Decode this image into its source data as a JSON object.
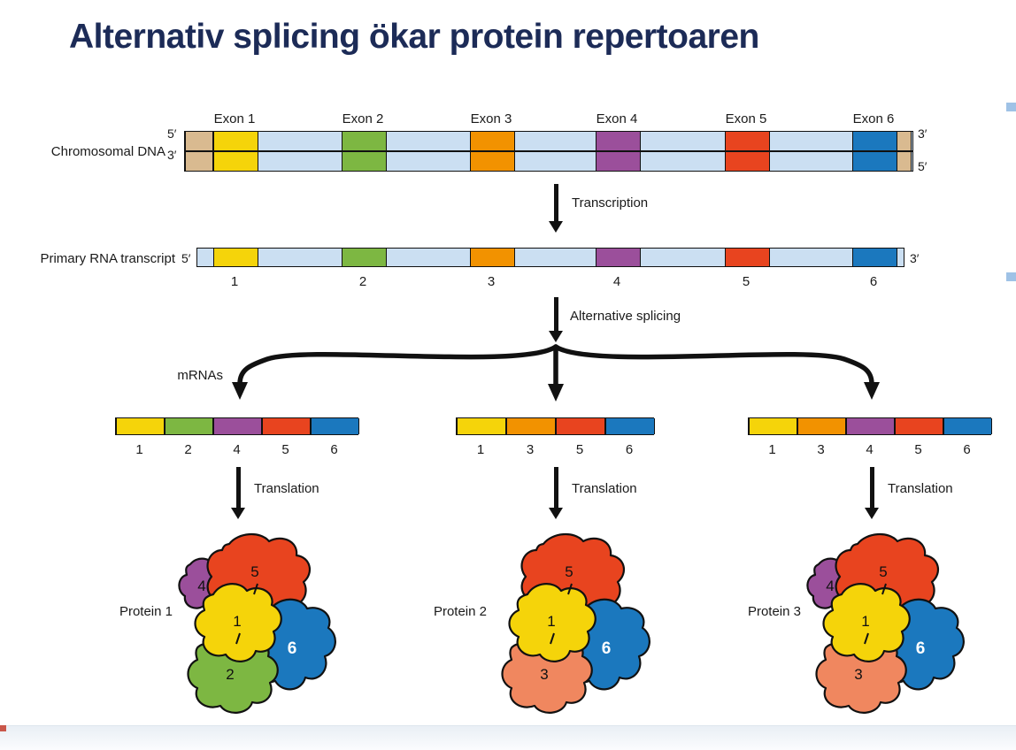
{
  "title": "Alternativ splicing ökar protein repertoaren",
  "palette": {
    "title_color": "#1c2b57",
    "intron": "#cbdff2",
    "endcap": "#d9ba90",
    "outline": "#111111",
    "marker_blue": "#9fc2e6",
    "exon_colors": {
      "1": "#f5d40a",
      "2": "#7db742",
      "3": "#f29200",
      "4": "#9b4f9b",
      "5": "#e8441f",
      "6": "#1b78be"
    },
    "protein_subunit_colors": {
      "1": "#f5d40a",
      "2": "#7db742",
      "3": "#f0875f",
      "4": "#9b4f9b",
      "5": "#e8441f",
      "6": "#1b78be"
    }
  },
  "dna_row": {
    "label": "Chromosomal DNA",
    "left_top_prime": "5′",
    "left_bottom_prime": "3′",
    "right_top_prime": "3′",
    "right_bottom_prime": "5′",
    "exons": [
      {
        "num": "1",
        "label": "Exon 1"
      },
      {
        "num": "2",
        "label": "Exon 2"
      },
      {
        "num": "3",
        "label": "Exon 3"
      },
      {
        "num": "4",
        "label": "Exon 4"
      },
      {
        "num": "5",
        "label": "Exon 5"
      },
      {
        "num": "6",
        "label": "Exon 6"
      }
    ]
  },
  "transcription_label": "Transcription",
  "rna_row": {
    "label": "Primary RNA transcript",
    "left_prime": "5′",
    "right_prime": "3′",
    "exon_numbers": [
      "1",
      "2",
      "3",
      "4",
      "5",
      "6"
    ]
  },
  "alternative_splicing_label": "Alternative splicing",
  "mrna_section": {
    "group_label": "mRNAs",
    "translation_label": "Translation",
    "mrnas": [
      {
        "exons": [
          "1",
          "2",
          "4",
          "5",
          "6"
        ]
      },
      {
        "exons": [
          "1",
          "3",
          "5",
          "6"
        ]
      },
      {
        "exons": [
          "1",
          "3",
          "4",
          "5",
          "6"
        ]
      }
    ]
  },
  "proteins": [
    {
      "label": "Protein 1",
      "subunits": [
        "1",
        "2",
        "4",
        "5",
        "6"
      ]
    },
    {
      "label": "Protein 2",
      "subunits": [
        "1",
        "3",
        "5",
        "6"
      ]
    },
    {
      "label": "Protein 3",
      "subunits": [
        "1",
        "3",
        "4",
        "5",
        "6"
      ]
    }
  ]
}
